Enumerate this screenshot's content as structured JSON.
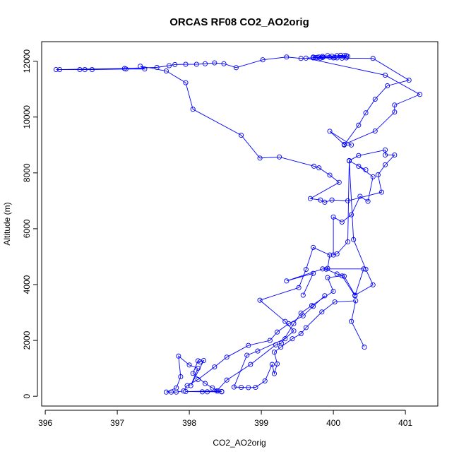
{
  "chart_data": {
    "type": "scatter",
    "title": "ORCAS RF08 CO2_AO2orig",
    "xlabel": "CO2_AO2orig",
    "ylabel": "Altitude (m)",
    "xlim": [
      395.95,
      401.45
    ],
    "ylim": [
      -350,
      12700
    ],
    "xticks": [
      396,
      397,
      398,
      399,
      400,
      401
    ],
    "yticks": [
      0,
      2000,
      4000,
      6000,
      8000,
      10000,
      12000
    ],
    "grid": false,
    "legend": "none",
    "marker": "open-circle",
    "connect_points": true,
    "series": [
      {
        "color": "#0000ff",
        "points": [
          [
            400.43,
            1760
          ],
          [
            400.25,
            2680
          ],
          [
            400.31,
            3420
          ],
          [
            400.02,
            3380
          ],
          [
            399.84,
            3020
          ],
          [
            399.62,
            2460
          ],
          [
            399.55,
            2240
          ],
          [
            399.43,
            2060
          ],
          [
            399.27,
            1760
          ],
          [
            399.18,
            1580
          ],
          [
            399.22,
            1160
          ],
          [
            399.18,
            810
          ],
          [
            399.15,
            1140
          ],
          [
            399.05,
            550
          ],
          [
            398.92,
            320
          ],
          [
            398.82,
            310
          ],
          [
            398.72,
            320
          ],
          [
            398.62,
            330
          ],
          [
            398.8,
            1470
          ],
          [
            398.95,
            1620
          ],
          [
            399.33,
            2060
          ],
          [
            399.45,
            2340
          ],
          [
            399.33,
            2680
          ],
          [
            398.98,
            3440
          ],
          [
            399.52,
            3890
          ],
          [
            399.62,
            4540
          ],
          [
            399.72,
            5330
          ],
          [
            399.95,
            5060
          ],
          [
            399.92,
            4580
          ],
          [
            399.9,
            4550
          ],
          [
            400.05,
            4380
          ],
          [
            400.15,
            4300
          ],
          [
            400.3,
            3620
          ],
          [
            400.55,
            3990
          ],
          [
            400.45,
            4550
          ],
          [
            400.28,
            5610
          ],
          [
            400.22,
            8430
          ],
          [
            400.45,
            8110
          ],
          [
            400.35,
            8240
          ],
          [
            400.55,
            7860
          ],
          [
            400.48,
            6980
          ],
          [
            400.37,
            7160
          ],
          [
            400.25,
            6500
          ],
          [
            400.12,
            6240
          ],
          [
            400.0,
            6420
          ],
          [
            400.0,
            5060
          ],
          [
            400.05,
            5100
          ],
          [
            400.2,
            5530
          ],
          [
            400.22,
            8440
          ],
          [
            400.35,
            8620
          ],
          [
            400.72,
            8820
          ],
          [
            400.72,
            8640
          ],
          [
            400.85,
            8640
          ],
          [
            400.72,
            8290
          ],
          [
            400.62,
            7930
          ],
          [
            400.67,
            7310
          ],
          [
            400.2,
            7000
          ],
          [
            399.98,
            7030
          ],
          [
            399.88,
            6950
          ],
          [
            399.82,
            7030
          ],
          [
            399.68,
            7080
          ],
          [
            400.08,
            7660
          ],
          [
            399.95,
            7920
          ],
          [
            399.8,
            8180
          ],
          [
            399.73,
            8240
          ],
          [
            399.25,
            8570
          ],
          [
            398.98,
            8530
          ],
          [
            398.72,
            9350
          ],
          [
            398.05,
            10280
          ],
          [
            397.95,
            11230
          ],
          [
            397.68,
            11650
          ],
          [
            397.32,
            11820
          ],
          [
            397.38,
            11720
          ],
          [
            397.12,
            11720
          ],
          [
            396.65,
            11700
          ],
          [
            396.55,
            11700
          ],
          [
            396.48,
            11700
          ],
          [
            396.2,
            11700
          ],
          [
            396.15,
            11700
          ],
          [
            397.1,
            11740
          ],
          [
            397.55,
            11780
          ],
          [
            397.72,
            11840
          ],
          [
            397.8,
            11880
          ],
          [
            397.95,
            11890
          ],
          [
            398.1,
            11890
          ],
          [
            398.22,
            11910
          ],
          [
            398.35,
            11940
          ],
          [
            398.48,
            11910
          ],
          [
            398.65,
            11770
          ],
          [
            399.02,
            12050
          ],
          [
            399.35,
            12150
          ],
          [
            399.55,
            12100
          ],
          [
            399.72,
            12120
          ],
          [
            399.8,
            12150
          ],
          [
            399.85,
            12170
          ],
          [
            399.92,
            12200
          ],
          [
            399.98,
            12180
          ],
          [
            400.05,
            12200
          ],
          [
            400.1,
            12210
          ],
          [
            400.18,
            12200
          ],
          [
            400.12,
            12110
          ],
          [
            400.55,
            12100
          ],
          [
            401.05,
            11320
          ],
          [
            400.75,
            11120
          ],
          [
            400.58,
            10640
          ],
          [
            400.45,
            10150
          ],
          [
            400.35,
            9710
          ],
          [
            400.15,
            9000
          ],
          [
            400.25,
            9000
          ],
          [
            399.95,
            9490
          ],
          [
            400.15,
            9020
          ],
          [
            400.58,
            9500
          ],
          [
            400.85,
            10180
          ],
          [
            400.85,
            10430
          ],
          [
            401.2,
            10810
          ],
          [
            400.72,
            11500
          ],
          [
            399.62,
            12110
          ],
          [
            399.78,
            12140
          ],
          [
            399.85,
            12170
          ],
          [
            400.02,
            12140
          ],
          [
            400.15,
            12200
          ],
          [
            400.2,
            12170
          ],
          [
            399.95,
            12140
          ],
          [
            399.85,
            12130
          ],
          [
            399.72,
            12150
          ],
          [
            400.05,
            12120
          ],
          [
            400.18,
            12120
          ],
          [
            400.0,
            12120
          ],
          [
            399.82,
            12110
          ],
          [
            399.75,
            12130
          ]
        ]
      },
      {
        "color": "#0000ff",
        "points": [
          [
            399.88,
            3600
          ],
          [
            399.72,
            3220
          ],
          [
            399.58,
            2880
          ],
          [
            399.38,
            2600
          ],
          [
            399.22,
            2300
          ],
          [
            399.12,
            2000
          ],
          [
            398.82,
            1820
          ],
          [
            398.52,
            1400
          ],
          [
            398.35,
            1050
          ],
          [
            398.12,
            600
          ],
          [
            397.97,
            380
          ],
          [
            397.92,
            190
          ],
          [
            397.82,
            150
          ],
          [
            397.75,
            150
          ],
          [
            397.68,
            150
          ],
          [
            397.82,
            300
          ],
          [
            397.88,
            700
          ],
          [
            397.85,
            1440
          ],
          [
            398.0,
            1120
          ],
          [
            398.12,
            1000
          ],
          [
            398.02,
            380
          ],
          [
            398.2,
            1280
          ],
          [
            398.15,
            1230
          ],
          [
            398.12,
            1270
          ],
          [
            398.05,
            820
          ],
          [
            398.22,
            460
          ],
          [
            398.32,
            300
          ],
          [
            398.4,
            190
          ],
          [
            398.45,
            170
          ],
          [
            398.25,
            160
          ],
          [
            398.45,
            160
          ],
          [
            398.18,
            160
          ],
          [
            397.95,
            170
          ],
          [
            398.38,
            190
          ],
          [
            398.52,
            580
          ],
          [
            398.85,
            1140
          ],
          [
            399.2,
            1840
          ],
          [
            399.28,
            1900
          ],
          [
            399.45,
            2600
          ],
          [
            399.55,
            2980
          ],
          [
            399.7,
            3250
          ],
          [
            400.0,
            3760
          ],
          [
            399.92,
            4250
          ],
          [
            400.12,
            4310
          ],
          [
            400.3,
            3600
          ],
          [
            400.42,
            4560
          ],
          [
            399.85,
            4560
          ],
          [
            399.35,
            4130
          ],
          [
            399.72,
            4400
          ],
          [
            399.58,
            3620
          ]
        ]
      }
    ]
  }
}
